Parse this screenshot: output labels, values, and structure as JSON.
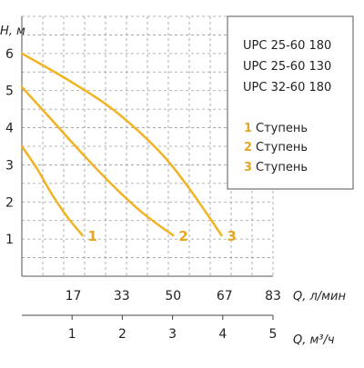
{
  "chart_data": {
    "type": "line",
    "y_axis": {
      "label": "Н, м",
      "range": [
        0,
        7
      ],
      "ticks": [
        "1",
        "2",
        "3",
        "4",
        "5",
        "6"
      ]
    },
    "x_axis_primary": {
      "label": "Q, л/мин",
      "range": [
        0,
        83
      ],
      "ticks": [
        "17",
        "33",
        "50",
        "67",
        "83"
      ]
    },
    "x_axis_secondary": {
      "label": "Q, м³/ч",
      "range": [
        0,
        5
      ],
      "ticks": [
        "1",
        "2",
        "3",
        "4",
        "5"
      ]
    },
    "grid": true,
    "legend_models": [
      "UPC 25-60 180",
      "UPC 25-60 130",
      "UPC 32-60 180"
    ],
    "legend_speeds": [
      {
        "number": "1",
        "label": "Ступень"
      },
      {
        "number": "2",
        "label": "Ступень"
      },
      {
        "number": "3",
        "label": "Ступень"
      }
    ],
    "series": [
      {
        "curve_label": "1",
        "x_unit": "л/мин",
        "points": [
          [
            0,
            3.5
          ],
          [
            5,
            2.9
          ],
          [
            10,
            2.2
          ],
          [
            15,
            1.6
          ],
          [
            20,
            1.1
          ]
        ]
      },
      {
        "curve_label": "2",
        "x_unit": "л/мин",
        "points": [
          [
            0,
            5.1
          ],
          [
            10,
            4.2
          ],
          [
            20,
            3.3
          ],
          [
            30,
            2.45
          ],
          [
            40,
            1.7
          ],
          [
            50,
            1.1
          ]
        ]
      },
      {
        "curve_label": "3",
        "x_unit": "л/мин",
        "points": [
          [
            0,
            6.0
          ],
          [
            15,
            5.3
          ],
          [
            30,
            4.5
          ],
          [
            45,
            3.4
          ],
          [
            55,
            2.4
          ],
          [
            66,
            1.1
          ]
        ]
      }
    ],
    "line_color": "#f0b323",
    "label_color": "#e8a61e"
  }
}
